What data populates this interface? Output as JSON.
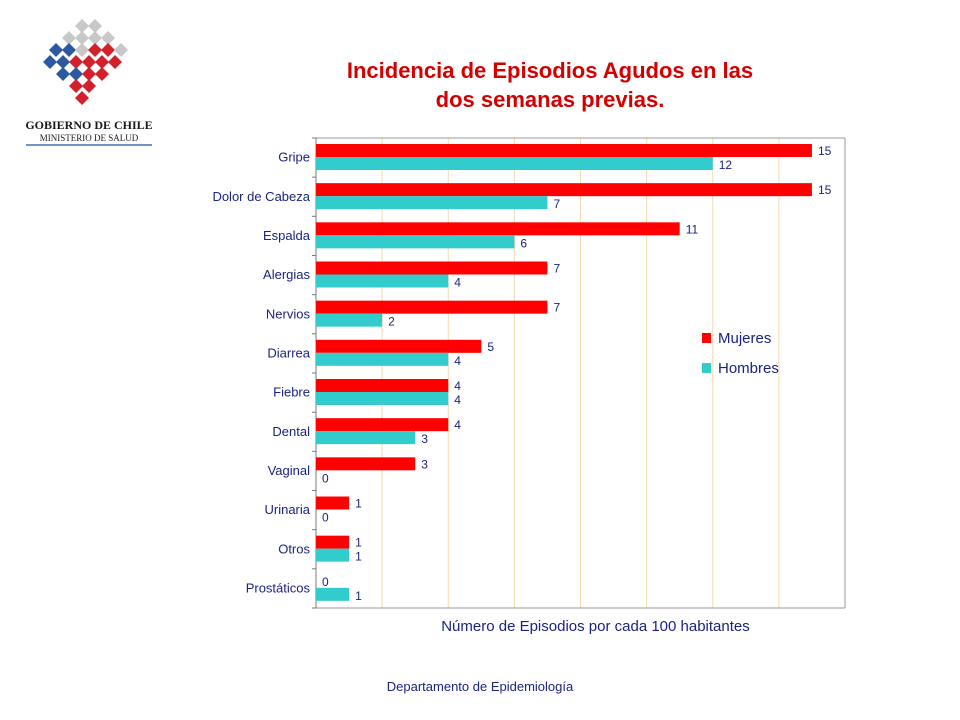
{
  "logo": {
    "line1": "GOBIERNO DE CHILE",
    "line2": "MINISTERIO DE SALUD"
  },
  "title": {
    "line1": "Incidencia de Episodios Agudos en las",
    "line2": "dos semanas previas."
  },
  "colors": {
    "mujeres": "#ff0000",
    "hombres": "#33cccc",
    "title": "#d40000",
    "text": "#1a237e",
    "grid": "#f3d9b0"
  },
  "chart_data": {
    "type": "bar",
    "orientation": "horizontal",
    "categories": [
      "Gripe",
      "Dolor de Cabeza",
      "Espalda",
      "Alergias",
      "Nervios",
      "Diarrea",
      "Fiebre",
      "Dental",
      "Vaginal",
      "Urinaria",
      "Otros",
      "Prostáticos"
    ],
    "series": [
      {
        "name": "Mujeres",
        "values": [
          15,
          15,
          11,
          7,
          7,
          5,
          4,
          4,
          3,
          1,
          1,
          0
        ]
      },
      {
        "name": "Hombres",
        "values": [
          12,
          7,
          6,
          4,
          2,
          4,
          4,
          3,
          0,
          0,
          1,
          1
        ]
      }
    ],
    "xlabel": "Número de Episodios por cada 100 habitantes",
    "ylabel": "",
    "xlim": [
      0,
      16
    ],
    "grid": "vertical",
    "legend": "right"
  },
  "footer": "Departamento de Epidemiología"
}
